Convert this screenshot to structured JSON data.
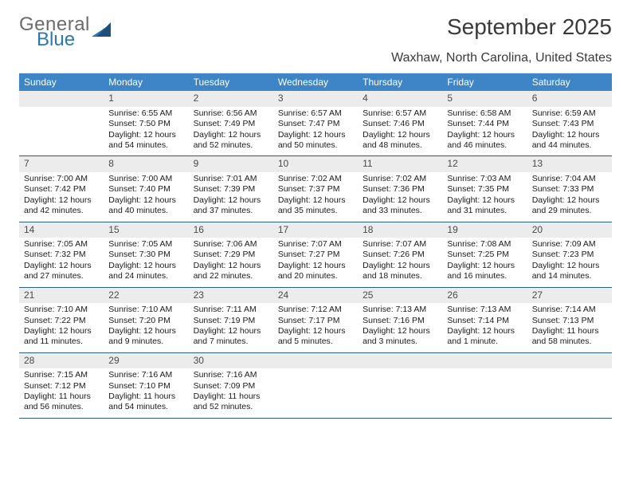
{
  "logo": {
    "text_general": "General",
    "text_blue": "Blue"
  },
  "title": "September 2025",
  "subtitle": "Waxhaw, North Carolina, United States",
  "colors": {
    "header_bg": "#3d85c6",
    "header_text": "#ffffff",
    "row_border": "#2e5d8a",
    "shaded_bg": "#ececec",
    "title_color": "#3a3a3a",
    "logo_gray": "#6b6b6b",
    "logo_blue": "#2e75b6"
  },
  "weekdays": [
    "Sunday",
    "Monday",
    "Tuesday",
    "Wednesday",
    "Thursday",
    "Friday",
    "Saturday"
  ],
  "weeks": [
    [
      {
        "day": "",
        "sunrise": "",
        "sunset": "",
        "daylight": ""
      },
      {
        "day": "1",
        "sunrise": "Sunrise: 6:55 AM",
        "sunset": "Sunset: 7:50 PM",
        "daylight": "Daylight: 12 hours and 54 minutes."
      },
      {
        "day": "2",
        "sunrise": "Sunrise: 6:56 AM",
        "sunset": "Sunset: 7:49 PM",
        "daylight": "Daylight: 12 hours and 52 minutes."
      },
      {
        "day": "3",
        "sunrise": "Sunrise: 6:57 AM",
        "sunset": "Sunset: 7:47 PM",
        "daylight": "Daylight: 12 hours and 50 minutes."
      },
      {
        "day": "4",
        "sunrise": "Sunrise: 6:57 AM",
        "sunset": "Sunset: 7:46 PM",
        "daylight": "Daylight: 12 hours and 48 minutes."
      },
      {
        "day": "5",
        "sunrise": "Sunrise: 6:58 AM",
        "sunset": "Sunset: 7:44 PM",
        "daylight": "Daylight: 12 hours and 46 minutes."
      },
      {
        "day": "6",
        "sunrise": "Sunrise: 6:59 AM",
        "sunset": "Sunset: 7:43 PM",
        "daylight": "Daylight: 12 hours and 44 minutes."
      }
    ],
    [
      {
        "day": "7",
        "sunrise": "Sunrise: 7:00 AM",
        "sunset": "Sunset: 7:42 PM",
        "daylight": "Daylight: 12 hours and 42 minutes."
      },
      {
        "day": "8",
        "sunrise": "Sunrise: 7:00 AM",
        "sunset": "Sunset: 7:40 PM",
        "daylight": "Daylight: 12 hours and 40 minutes."
      },
      {
        "day": "9",
        "sunrise": "Sunrise: 7:01 AM",
        "sunset": "Sunset: 7:39 PM",
        "daylight": "Daylight: 12 hours and 37 minutes."
      },
      {
        "day": "10",
        "sunrise": "Sunrise: 7:02 AM",
        "sunset": "Sunset: 7:37 PM",
        "daylight": "Daylight: 12 hours and 35 minutes."
      },
      {
        "day": "11",
        "sunrise": "Sunrise: 7:02 AM",
        "sunset": "Sunset: 7:36 PM",
        "daylight": "Daylight: 12 hours and 33 minutes."
      },
      {
        "day": "12",
        "sunrise": "Sunrise: 7:03 AM",
        "sunset": "Sunset: 7:35 PM",
        "daylight": "Daylight: 12 hours and 31 minutes."
      },
      {
        "day": "13",
        "sunrise": "Sunrise: 7:04 AM",
        "sunset": "Sunset: 7:33 PM",
        "daylight": "Daylight: 12 hours and 29 minutes."
      }
    ],
    [
      {
        "day": "14",
        "sunrise": "Sunrise: 7:05 AM",
        "sunset": "Sunset: 7:32 PM",
        "daylight": "Daylight: 12 hours and 27 minutes."
      },
      {
        "day": "15",
        "sunrise": "Sunrise: 7:05 AM",
        "sunset": "Sunset: 7:30 PM",
        "daylight": "Daylight: 12 hours and 24 minutes."
      },
      {
        "day": "16",
        "sunrise": "Sunrise: 7:06 AM",
        "sunset": "Sunset: 7:29 PM",
        "daylight": "Daylight: 12 hours and 22 minutes."
      },
      {
        "day": "17",
        "sunrise": "Sunrise: 7:07 AM",
        "sunset": "Sunset: 7:27 PM",
        "daylight": "Daylight: 12 hours and 20 minutes."
      },
      {
        "day": "18",
        "sunrise": "Sunrise: 7:07 AM",
        "sunset": "Sunset: 7:26 PM",
        "daylight": "Daylight: 12 hours and 18 minutes."
      },
      {
        "day": "19",
        "sunrise": "Sunrise: 7:08 AM",
        "sunset": "Sunset: 7:25 PM",
        "daylight": "Daylight: 12 hours and 16 minutes."
      },
      {
        "day": "20",
        "sunrise": "Sunrise: 7:09 AM",
        "sunset": "Sunset: 7:23 PM",
        "daylight": "Daylight: 12 hours and 14 minutes."
      }
    ],
    [
      {
        "day": "21",
        "sunrise": "Sunrise: 7:10 AM",
        "sunset": "Sunset: 7:22 PM",
        "daylight": "Daylight: 12 hours and 11 minutes."
      },
      {
        "day": "22",
        "sunrise": "Sunrise: 7:10 AM",
        "sunset": "Sunset: 7:20 PM",
        "daylight": "Daylight: 12 hours and 9 minutes."
      },
      {
        "day": "23",
        "sunrise": "Sunrise: 7:11 AM",
        "sunset": "Sunset: 7:19 PM",
        "daylight": "Daylight: 12 hours and 7 minutes."
      },
      {
        "day": "24",
        "sunrise": "Sunrise: 7:12 AM",
        "sunset": "Sunset: 7:17 PM",
        "daylight": "Daylight: 12 hours and 5 minutes."
      },
      {
        "day": "25",
        "sunrise": "Sunrise: 7:13 AM",
        "sunset": "Sunset: 7:16 PM",
        "daylight": "Daylight: 12 hours and 3 minutes."
      },
      {
        "day": "26",
        "sunrise": "Sunrise: 7:13 AM",
        "sunset": "Sunset: 7:14 PM",
        "daylight": "Daylight: 12 hours and 1 minute."
      },
      {
        "day": "27",
        "sunrise": "Sunrise: 7:14 AM",
        "sunset": "Sunset: 7:13 PM",
        "daylight": "Daylight: 11 hours and 58 minutes."
      }
    ],
    [
      {
        "day": "28",
        "sunrise": "Sunrise: 7:15 AM",
        "sunset": "Sunset: 7:12 PM",
        "daylight": "Daylight: 11 hours and 56 minutes."
      },
      {
        "day": "29",
        "sunrise": "Sunrise: 7:16 AM",
        "sunset": "Sunset: 7:10 PM",
        "daylight": "Daylight: 11 hours and 54 minutes."
      },
      {
        "day": "30",
        "sunrise": "Sunrise: 7:16 AM",
        "sunset": "Sunset: 7:09 PM",
        "daylight": "Daylight: 11 hours and 52 minutes."
      },
      {
        "day": "",
        "sunrise": "",
        "sunset": "",
        "daylight": ""
      },
      {
        "day": "",
        "sunrise": "",
        "sunset": "",
        "daylight": ""
      },
      {
        "day": "",
        "sunrise": "",
        "sunset": "",
        "daylight": ""
      },
      {
        "day": "",
        "sunrise": "",
        "sunset": "",
        "daylight": ""
      }
    ]
  ]
}
